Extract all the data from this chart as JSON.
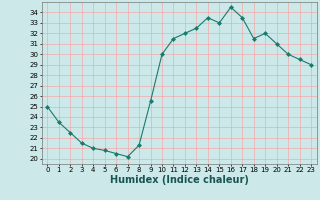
{
  "x": [
    0,
    1,
    2,
    3,
    4,
    5,
    6,
    7,
    8,
    9,
    10,
    11,
    12,
    13,
    14,
    15,
    16,
    17,
    18,
    19,
    20,
    21,
    22,
    23
  ],
  "y": [
    25.0,
    23.5,
    22.5,
    21.5,
    21.0,
    20.8,
    20.5,
    20.2,
    21.3,
    25.5,
    30.0,
    31.5,
    32.0,
    32.5,
    33.5,
    33.0,
    34.5,
    33.5,
    31.5,
    32.0,
    31.0,
    30.0,
    29.5,
    29.0
  ],
  "line_color": "#1a7a6e",
  "marker": "D",
  "marker_size": 2.0,
  "bg_color": "#cce8e8",
  "grid_color": "#ff9999",
  "xlabel": "Humidex (Indice chaleur)",
  "xlim": [
    -0.5,
    23.5
  ],
  "ylim": [
    19.5,
    35.0
  ],
  "yticks": [
    20,
    21,
    22,
    23,
    24,
    25,
    26,
    27,
    28,
    29,
    30,
    31,
    32,
    33,
    34
  ],
  "xticks": [
    0,
    1,
    2,
    3,
    4,
    5,
    6,
    7,
    8,
    9,
    10,
    11,
    12,
    13,
    14,
    15,
    16,
    17,
    18,
    19,
    20,
    21,
    22,
    23
  ],
  "tick_fontsize": 5.0,
  "label_fontsize": 7.0,
  "linewidth": 0.8
}
